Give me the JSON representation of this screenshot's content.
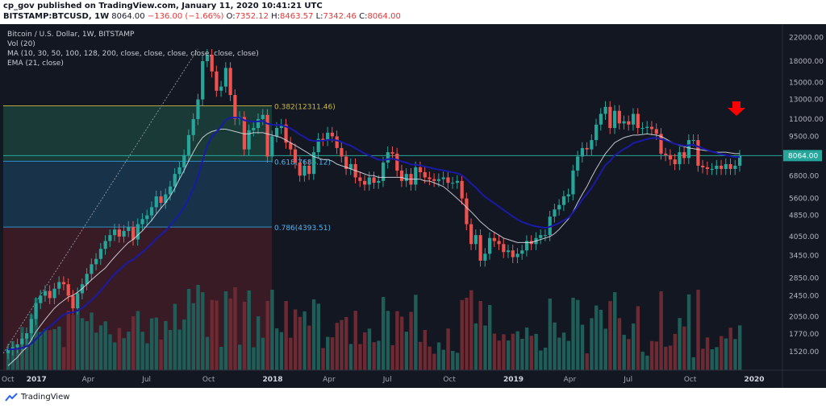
{
  "header": {
    "publisher_line": "cp_gov published on TradingView.com, January 11, 2020 10:41:21 UTC",
    "symbol": "BITSTAMP:BTCUSD, 1W",
    "last": "8064.00",
    "change": "−136.00 (−1.66%)",
    "o_label": "O:",
    "o_value": "7352.12",
    "h_label": "H:",
    "h_value": "8463.57",
    "l_label": "L:",
    "l_value": "7342.46",
    "c_label": "C:",
    "c_value": "8064.00"
  },
  "overlays": {
    "title": "Bitcoin / U.S. Dollar, 1W, BITSTAMP",
    "vol": "Vol (20)",
    "ma": "MA (10, 30, 50, 100, 128, 200, close, close, close, close, close, close)",
    "ema": "EMA (21, close)"
  },
  "footer": {
    "brand": "TradingView"
  },
  "colors": {
    "background": "#131722",
    "up": "#26a69a",
    "down": "#ef5350",
    "ma": "#e0e3eb",
    "ema": "#1a1aa8",
    "arrow": "#ff0000",
    "fib_green": "#1f5748",
    "fib_blue": "#1e4a6a",
    "fib_red": "#5a1f2a",
    "price_line": "#26a69a"
  },
  "chart_data": {
    "type": "candlestick",
    "scale": "log",
    "ylim": [
      1300,
      24000
    ],
    "y_ticks": [
      "22000.00",
      "18000.00",
      "15000.00",
      "13000.00",
      "11000.00",
      "9500.00",
      "8064.00",
      "6800.00",
      "5600.00",
      "4850.00",
      "4050.00",
      "3450.00",
      "2850.00",
      "2450.00",
      "2050.00",
      "1770.00",
      "1520.00"
    ],
    "x_ticks": [
      "Oct",
      "2017",
      "Apr",
      "Jul",
      "Oct",
      "2018",
      "Apr",
      "Jul",
      "Oct",
      "2019",
      "Apr",
      "Jul",
      "Oct",
      "2020"
    ],
    "last_price_label": "8064.00",
    "fib_levels": [
      {
        "label": "0.382(12311.46)",
        "price": 12311.46
      },
      {
        "label": "0.618(7686.12)",
        "price": 7686.12
      },
      {
        "label": "0.786(4393.51)",
        "price": 4393.51
      }
    ],
    "series": [
      {
        "name": "Bitcoin / U.S. Dollar",
        "kind": "price"
      },
      {
        "name": "MA",
        "kind": "line"
      },
      {
        "name": "EMA",
        "kind": "line"
      },
      {
        "name": "Vol",
        "kind": "volume"
      }
    ],
    "closes": [
      1550,
      1580,
      1620,
      1700,
      1780,
      2010,
      2300,
      2450,
      2550,
      2400,
      2600,
      2750,
      2700,
      2450,
      2200,
      2500,
      2700,
      2950,
      3200,
      3350,
      3650,
      3900,
      4100,
      4300,
      4050,
      4250,
      4400,
      3950,
      4500,
      4700,
      4850,
      5200,
      5700,
      5400,
      5800,
      6200,
      6900,
      7300,
      8100,
      9600,
      11000,
      13000,
      18000,
      19000,
      16500,
      14000,
      14500,
      17000,
      13500,
      11000,
      11200,
      8500,
      10000,
      10200,
      11000,
      11400,
      8000,
      9500,
      10200,
      10500,
      9000,
      8500,
      7600,
      6800,
      7400,
      6900,
      8300,
      9300,
      9200,
      9800,
      9500,
      8600,
      8000,
      7200,
      7500,
      6700,
      6500,
      6300,
      6700,
      6400,
      6500,
      7600,
      8300,
      8200,
      7100,
      6500,
      6900,
      6300,
      7300,
      7000,
      6700,
      6600,
      6500,
      6600,
      6700,
      6400,
      6400,
      6500,
      5600,
      4500,
      3800,
      4100,
      3300,
      3500,
      4000,
      3900,
      3800,
      3550,
      3600,
      3400,
      3500,
      3600,
      3900,
      3800,
      4000,
      4100,
      4100,
      4800,
      5100,
      5300,
      5700,
      5800,
      7100,
      8000,
      8600,
      8500,
      9200,
      10500,
      11500,
      12200,
      10200,
      11800,
      10600,
      10800,
      10500,
      11500,
      10200,
      10200,
      10300,
      10100,
      9700,
      8200,
      8100,
      7800,
      7500,
      8300,
      7900,
      9200,
      9200,
      7400,
      7300,
      7200,
      7200,
      7400,
      7200,
      7500,
      7200,
      7400,
      8064
    ],
    "ma_values": [
      1350,
      1400,
      1450,
      1520,
      1580,
      1680,
      1800,
      1900,
      2000,
      2100,
      2200,
      2280,
      2350,
      2420,
      2460,
      2520,
      2600,
      2700,
      2800,
      2900,
      3000,
      3100,
      3250,
      3400,
      3550,
      3700,
      3850,
      3950,
      4100,
      4250,
      4450,
      4650,
      4900,
      5150,
      5400,
      5700,
      6100,
      6600,
      7100,
      7700,
      8300,
      8900,
      9400,
      9700,
      9900,
      10000,
      10100,
      10100,
      10000,
      9900,
      9800,
      9700,
      9700,
      9800,
      9800,
      9800,
      9700,
      9600,
      9500,
      9400,
      9200,
      9000,
      8800,
      8600,
      8400,
      8200,
      8000,
      7900,
      7800,
      7800,
      7700,
      7500,
      7400,
      7300,
      7200,
      7100,
      7000,
      6900,
      6800,
      6800,
      6700,
      6700,
      6700,
      6700,
      6700,
      6700,
      6600,
      6600,
      6600,
      6600,
      6500,
      6500,
      6400,
      6300,
      6200,
      6000,
      5800,
      5600,
      5400,
      5200,
      5000,
      4800,
      4600,
      4450,
      4300,
      4200,
      4100,
      4000,
      3950,
      3900,
      3850,
      3850,
      3850,
      3850,
      3900,
      3950,
      4000,
      4050,
      4150,
      4300,
      4500,
      4700,
      5000,
      5400,
      5800,
      6200,
      6700,
      7200,
      7700,
      8200,
      8600,
      9000,
      9200,
      9400,
      9500,
      9600,
      9600,
      9650,
      9700,
      9650,
      9600,
      9500,
      9300,
      9100,
      8900,
      8800,
      8700,
      8600,
      8550,
      8500,
      8450,
      8400,
      8350,
      8300,
      8300,
      8300,
      8250,
      8200,
      8200
    ]
  }
}
